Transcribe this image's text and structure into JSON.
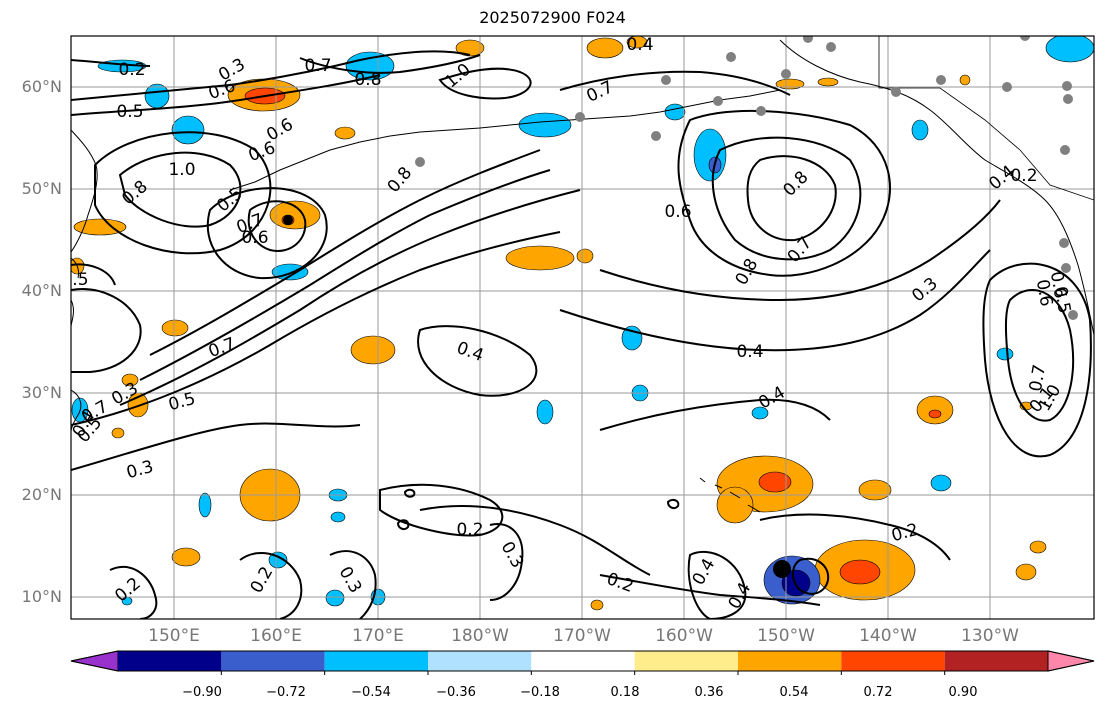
{
  "title": "2025072900 F024",
  "lat_labels": [
    "60°N",
    "50°N",
    "40°N",
    "30°N",
    "20°N",
    "10°N"
  ],
  "lon_labels": [
    "150°E",
    "160°E",
    "170°E",
    "180°W",
    "170°W",
    "160°W",
    "150°W",
    "140°W",
    "130°W"
  ],
  "colorbar": {
    "colors": [
      "#9932cc",
      "#00008b",
      "#3a5fcd",
      "#00bfff",
      "#b0e2ff",
      "#ffffff",
      "#ffec8b",
      "#ffa500",
      "#ff4500",
      "#b22222",
      "#ff88aa"
    ],
    "tick_labels": [
      "−0.90",
      "−0.72",
      "−0.54",
      "−0.36",
      "−0.18",
      "0.18",
      "0.36",
      "0.54",
      "0.72",
      "0.90"
    ],
    "extend": "both"
  },
  "contour_labels": [
    "0.2",
    "0.4",
    "0.3",
    "0.5",
    "0.6",
    "0.7",
    "0.8",
    "1.0",
    "0.6",
    "0.5",
    "0.5",
    "0.7",
    "0.8",
    "1.0",
    "0.6",
    "0.7",
    "0.7",
    "0.6",
    "0.8",
    "0.8",
    "0.7",
    "0.8",
    "0.3",
    "0.3",
    "0.4",
    "0.4",
    "0.4",
    "0.7",
    "0.5",
    "0.3",
    "0.2",
    "0.3",
    "0.2",
    "0.2",
    "0.2",
    "0.3",
    "0.4",
    "0.4",
    "0.2",
    "0.6",
    "0.7",
    "1.0",
    "0.5",
    "0.6",
    "0.2",
    "0.4",
    "0.1",
    "0.6",
    "0.5",
    "0.4"
  ]
}
